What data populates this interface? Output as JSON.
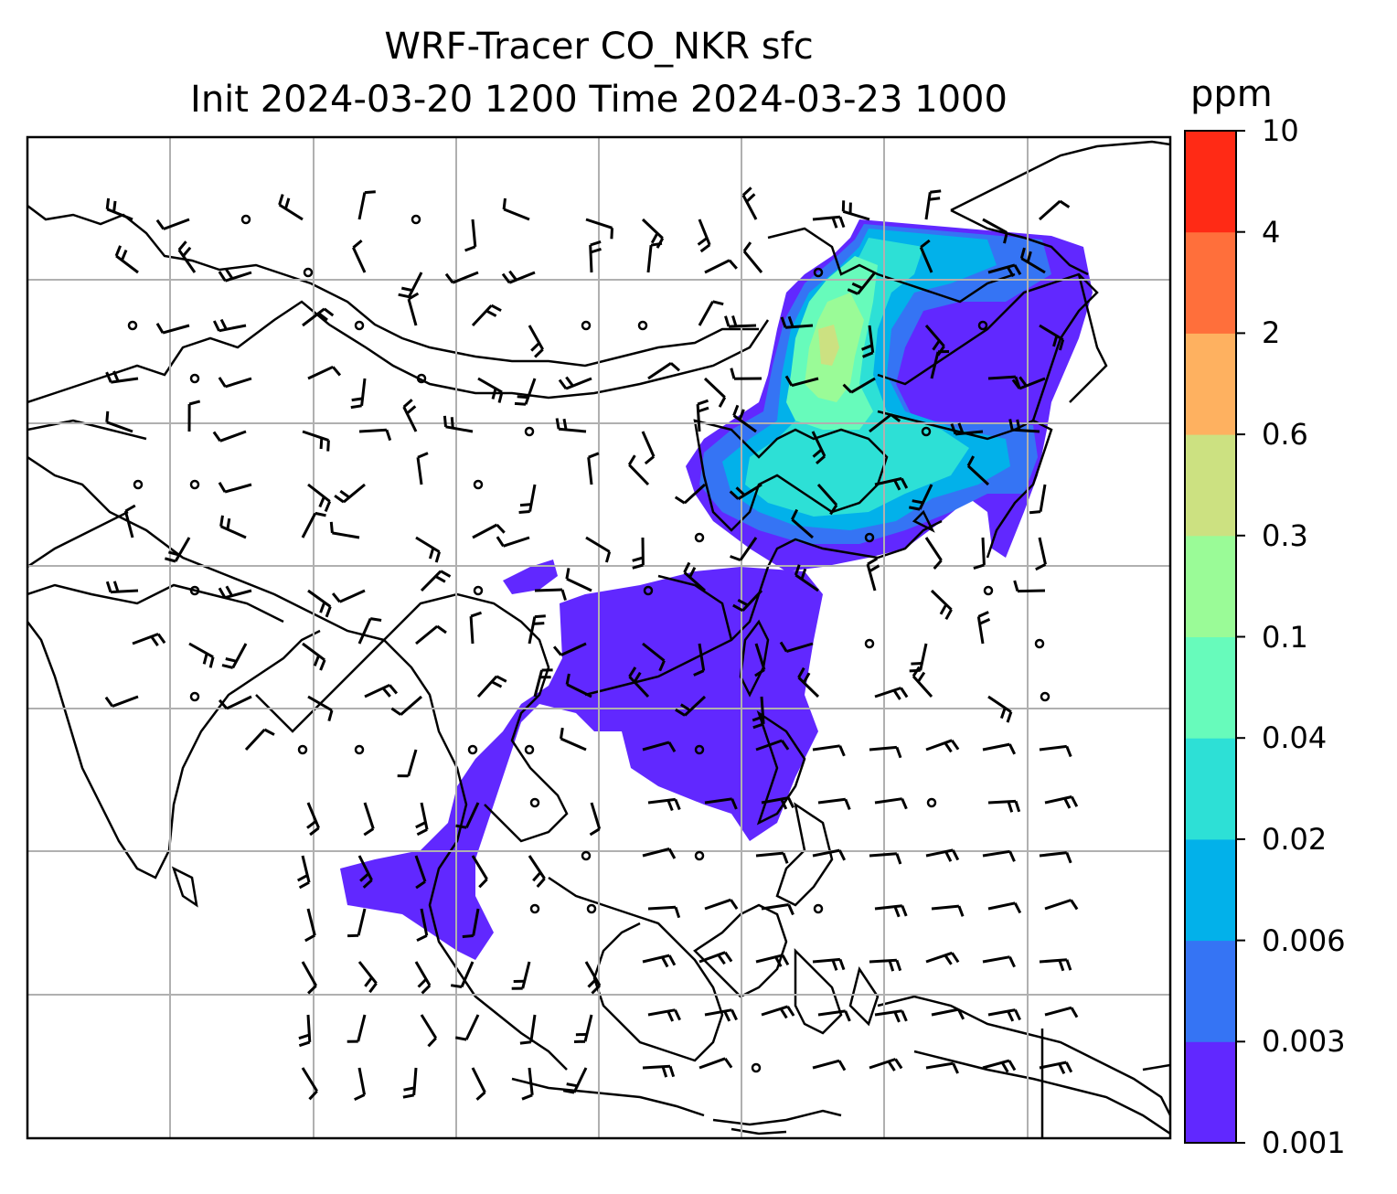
{
  "title": {
    "line1": "WRF-Tracer CO_NKR sfc",
    "line2": "Init 2024-03-20 1200 Time 2024-03-23 1000"
  },
  "colorbar": {
    "unit": "ppm",
    "levels": [
      "0.001",
      "0.003",
      "0.006",
      "0.02",
      "0.04",
      "0.1",
      "0.3",
      "0.6",
      "2",
      "4",
      "10"
    ],
    "colors": [
      "#6128ff",
      "#3574f4",
      "#02b1ea",
      "#2de0d6",
      "#67fbbb",
      "#9afb97",
      "#cce181",
      "#feb160",
      "#ff6f3b",
      "#ff2a15"
    ]
  },
  "map": {
    "gridlines": "on",
    "coastlines": "on",
    "wind_barbs": "on",
    "tracer_field": "CO_NKR"
  }
}
